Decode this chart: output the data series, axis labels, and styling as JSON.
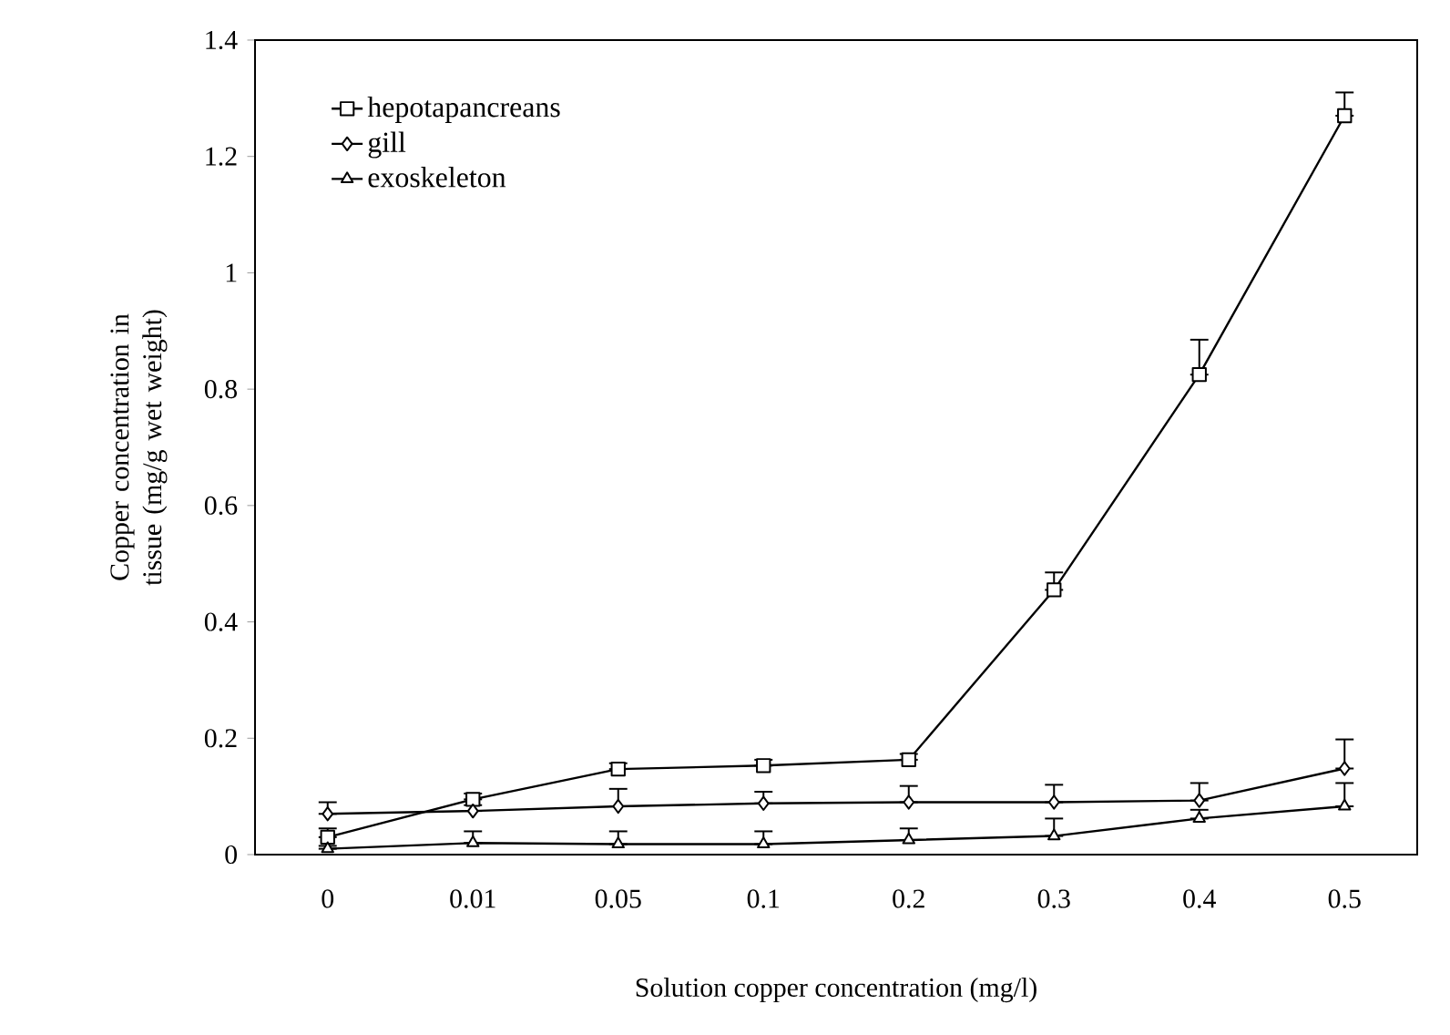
{
  "chart_data": {
    "type": "line",
    "xlabel": "Solution copper concentration  (mg/l)",
    "ylabel": "Copper concentration in tissue (mg/g  wet weight)",
    "categories": [
      "0",
      "0.01",
      "0.05",
      "0.1",
      "0.2",
      "0.3",
      "0.4",
      "0.5"
    ],
    "ylim": [
      0,
      1.4
    ],
    "yticks": [
      0,
      0.2,
      0.4,
      0.6,
      0.8,
      1,
      1.2,
      1.4
    ],
    "legend": "top left",
    "series": [
      {
        "name": "hepotapancreans",
        "color": "#000000",
        "marker": "square",
        "values": [
          0.03,
          0.095,
          0.147,
          0.153,
          0.163,
          0.455,
          0.825,
          1.27
        ],
        "errors": [
          [
            0.03,
            0.045
          ],
          [
            0.095,
            0.105
          ],
          [
            0.147,
            0.157
          ],
          [
            0.153,
            0.163
          ],
          [
            0.163,
            0.173
          ],
          [
            0.455,
            0.485
          ],
          [
            0.825,
            0.885
          ],
          [
            1.27,
            1.31
          ]
        ]
      },
      {
        "name": "gill",
        "color": "#000000",
        "marker": "diamond",
        "values": [
          0.07,
          0.075,
          0.083,
          0.088,
          0.09,
          0.09,
          0.093,
          0.148
        ],
        "errors": [
          [
            0.07,
            0.09
          ],
          [
            0.075,
            0.085
          ],
          [
            0.083,
            0.113
          ],
          [
            0.088,
            0.108
          ],
          [
            0.09,
            0.118
          ],
          [
            0.09,
            0.12
          ],
          [
            0.093,
            0.123
          ],
          [
            0.148,
            0.198
          ]
        ]
      },
      {
        "name": "exoskeleton",
        "color": "#000000",
        "marker": "triangle",
        "values": [
          0.01,
          0.02,
          0.018,
          0.018,
          0.025,
          0.032,
          0.062,
          0.083
        ],
        "errors": [
          [
            0.01,
            0.015
          ],
          [
            0.02,
            0.04
          ],
          [
            0.018,
            0.04
          ],
          [
            0.018,
            0.04
          ],
          [
            0.025,
            0.045
          ],
          [
            0.032,
            0.062
          ],
          [
            0.062,
            0.077
          ],
          [
            0.083,
            0.123
          ]
        ]
      }
    ]
  }
}
